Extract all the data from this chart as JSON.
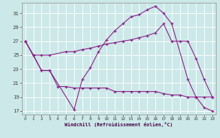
{
  "xlabel": "Windchill (Refroidissement éolien,°C)",
  "bg_color": "#cce8e8",
  "line_color": "#882288",
  "grid_color": "#aad8d8",
  "ylim_min": 16.5,
  "ylim_max": 32.5,
  "xlim_min": -0.4,
  "xlim_max": 23.4,
  "yticks": [
    17,
    19,
    21,
    23,
    25,
    27,
    29,
    31
  ],
  "xticks": [
    0,
    1,
    2,
    3,
    4,
    5,
    6,
    7,
    8,
    9,
    10,
    11,
    12,
    13,
    14,
    15,
    16,
    17,
    18,
    19,
    20,
    21,
    22,
    23
  ],
  "curve_low_x": [
    0,
    1,
    2,
    3,
    4,
    5,
    6,
    7,
    8,
    9,
    10,
    11,
    12,
    13,
    14,
    15,
    16,
    17,
    18,
    19,
    20,
    21,
    22,
    23
  ],
  "curve_low_y": [
    27,
    25,
    22.8,
    22.8,
    20.5,
    20.5,
    20.3,
    20.3,
    20.3,
    20.3,
    20.3,
    19.8,
    19.8,
    19.8,
    19.8,
    19.8,
    19.8,
    19.5,
    19.3,
    19.3,
    19.0,
    19.0,
    19.0,
    19.0
  ],
  "curve_mid_x": [
    0,
    1,
    2,
    3,
    5,
    6,
    7,
    8,
    9,
    10,
    11,
    12,
    13,
    14,
    15,
    16,
    17,
    18,
    19,
    20,
    21,
    22,
    23
  ],
  "curve_mid_y": [
    27,
    25,
    25,
    25,
    25.5,
    25.5,
    25.8,
    26.0,
    26.3,
    26.6,
    26.8,
    27.0,
    27.2,
    27.5,
    27.8,
    28.2,
    29.5,
    27.0,
    27.0,
    27.0,
    24.5,
    21.5,
    19.0
  ],
  "curve_top_x": [
    0,
    2,
    3,
    6,
    7,
    8,
    9,
    10,
    11,
    12,
    13,
    14,
    15,
    16,
    17,
    18,
    20,
    21,
    22,
    23
  ],
  "curve_top_y": [
    27,
    22.8,
    22.8,
    17.2,
    21.5,
    23.2,
    25.5,
    27.2,
    28.5,
    29.5,
    30.5,
    30.8,
    31.5,
    32.0,
    31.0,
    29.5,
    21.5,
    19.0,
    17.5,
    17.0
  ]
}
